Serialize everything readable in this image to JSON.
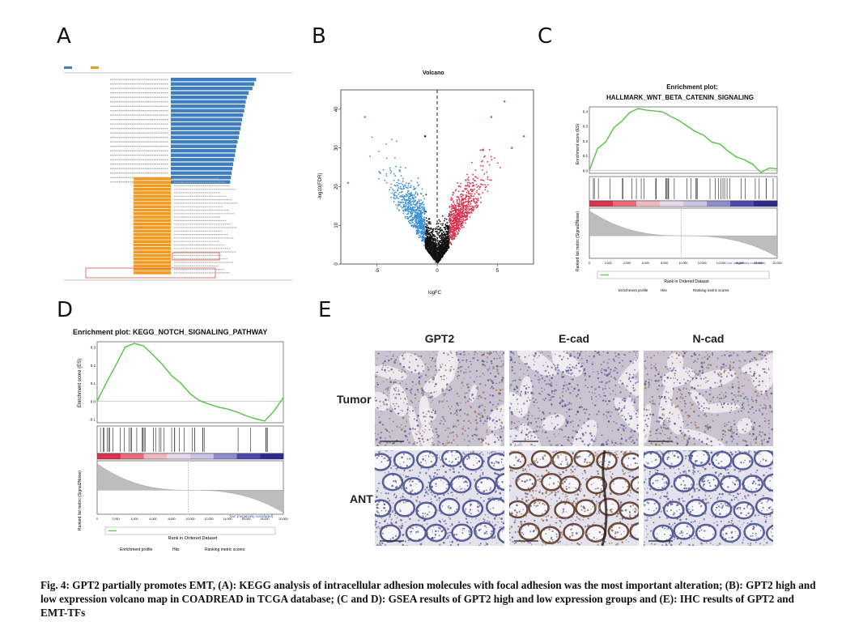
{
  "panels": {
    "a": {
      "letter": "A"
    },
    "b": {
      "letter": "B",
      "title": "Volcano",
      "xlabel": "logFC",
      "ylabel": "-log10(FDR)"
    },
    "c": {
      "letter": "C",
      "title_line1": "Enrichment plot:",
      "title_line2": "HALLMARK_WNT_BETA_CATENIN_SIGNALING",
      "ylabel_top": "Enrichment score (ES)",
      "ylabel_bottom": "Ranked list metric (Signal2Noise)",
      "xlabel": "Rank in Ordered Dataset",
      "high_label": "'high' (positively correlated)",
      "low_label": "'Low' (negatively correlated)",
      "zero_cross": "Zero cross at 9719",
      "legend": [
        "Enrichment profile",
        "Hits",
        "Ranking metric scores"
      ]
    },
    "d": {
      "letter": "D",
      "title": "Enrichment plot: KEGG_NOTCH_SIGNALING_PATHWAY",
      "ylabel_top": "Enrichment score (ES)",
      "ylabel_bottom": "Ranked list metric (Signal2Noise)",
      "xlabel": "Rank in Ordered Dataset",
      "high_label": "'high' (positively correlated)",
      "low_label": "'low' (negatively correlated)",
      "zero_cross": "Zero cross at 9999",
      "legend": [
        "Enrichment profile",
        "Hits",
        "Ranking metric scores"
      ]
    },
    "e": {
      "letter": "E",
      "columns": [
        "GPT2",
        "E-cad",
        "N-cad"
      ],
      "rows": [
        "Tumor",
        "ANT"
      ]
    }
  },
  "caption": "Fig. 4: GPT2 partially promotes EMT, (A): KEGG analysis of intracellular adhesion molecules with focal adhesion was the most important alteration; (B): GPT2 high and low expression volcano map in COADREAD in TCGA database; (C and D): GSEA results of GPT2 high and low expression groups and (E): IHC results of GPT2 and EMT-TFs",
  "chart_data": [
    {
      "type": "bar",
      "panel": "A",
      "series": [
        {
          "name": "",
          "values": [
            23,
            22.5,
            22,
            21,
            20.5,
            20.2,
            20,
            19.8,
            19.5,
            19.2,
            19,
            18.8,
            18.5,
            18.3,
            18,
            17.7,
            17.5,
            17.3,
            17,
            16.8,
            16.6,
            16.4,
            16.2,
            16
          ]
        },
        {
          "name": "",
          "values": [
            -5,
            -5,
            -5,
            -5,
            -5,
            -5,
            -5,
            -5,
            -5,
            -5,
            -5,
            -5,
            -5,
            -5,
            -5,
            -5,
            -5,
            -5,
            -5,
            -5,
            -5,
            -5,
            -5,
            -5,
            -5,
            -5,
            -5,
            -5
          ]
        }
      ],
      "colors": {
        "up": "#3f7fbf",
        "down": "#f29a1f",
        "box": "#d9534f"
      }
    },
    {
      "type": "scatter",
      "panel": "B",
      "xlim": [
        -8,
        8
      ],
      "ylim": [
        0,
        45
      ],
      "xticks": [
        -5,
        0,
        5
      ],
      "yticks": [
        0,
        10,
        20,
        30,
        40
      ],
      "colors": {
        "down": "#3a8fd6",
        "ns": "#111111",
        "up": "#d9334f"
      }
    },
    {
      "type": "line",
      "panel": "C",
      "yticks": [
        0.0,
        0.1,
        0.2,
        0.3,
        0.4
      ],
      "xticks": [
        0,
        2000,
        4000,
        6000,
        8000,
        10000,
        12000,
        14000,
        16000,
        18000,
        20000
      ],
      "es": [
        0.0,
        0.15,
        0.2,
        0.28,
        0.33,
        0.4,
        0.42,
        0.41,
        0.4,
        0.39,
        0.36,
        0.33,
        0.3,
        0.27,
        0.24,
        0.2,
        0.17,
        0.14,
        0.1,
        0.07,
        0.04,
        -0.02,
        0.02,
        0.01
      ],
      "color": "#55c245"
    },
    {
      "type": "line",
      "panel": "D",
      "yticks": [
        -0.1,
        0.0,
        0.1,
        0.2,
        0.3
      ],
      "xticks": [
        0,
        2000,
        4000,
        6000,
        8000,
        10000,
        12000,
        14000,
        16000,
        18000,
        20000
      ],
      "es": [
        0.0,
        0.1,
        0.2,
        0.3,
        0.32,
        0.3,
        0.26,
        0.2,
        0.15,
        0.1,
        0.05,
        0.0,
        -0.02,
        -0.04,
        -0.05,
        -0.07,
        -0.08,
        -0.1,
        -0.11,
        -0.05,
        0.02
      ],
      "color": "#55c245"
    }
  ]
}
